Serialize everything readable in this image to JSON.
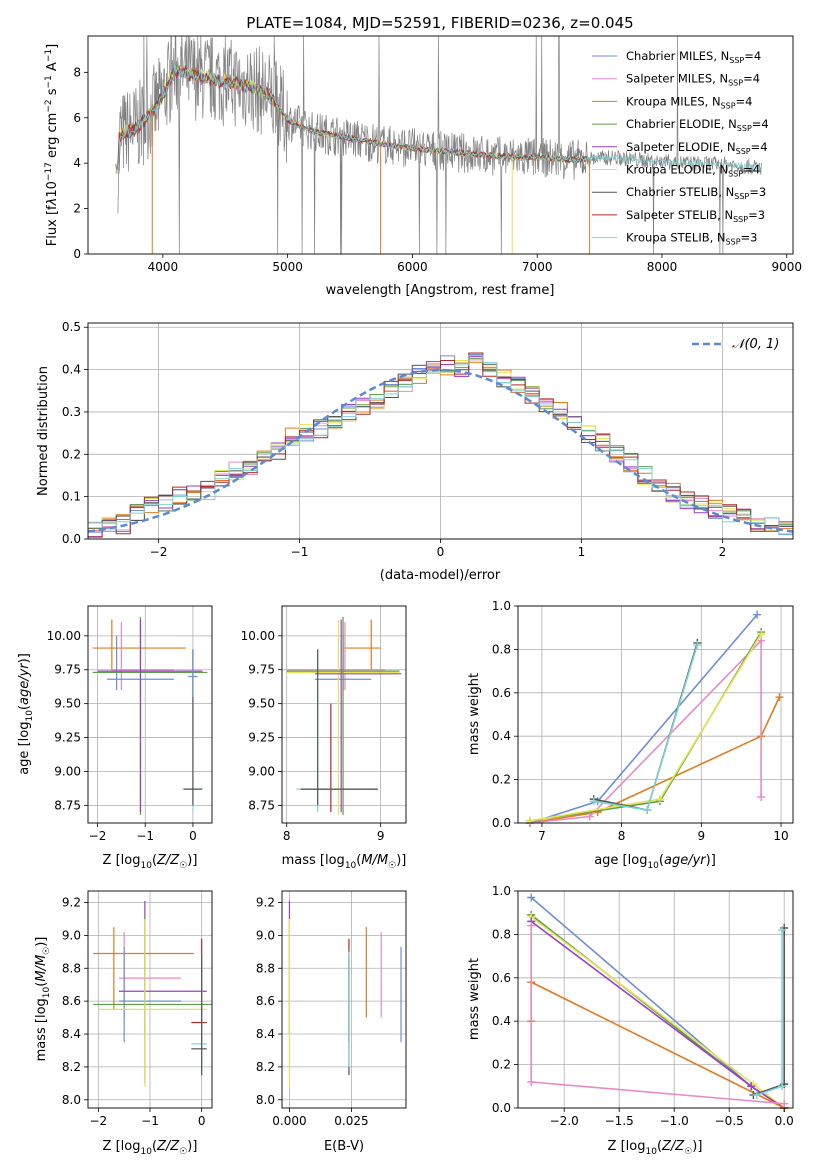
{
  "title": "PLATE=1084, MJD=52591, FIBERID=0236, z=0.045",
  "colors": {
    "Chabrier MILES": "#6e8fd6",
    "Salpeter MILES": "#e88ac6",
    "Kroupa MILES": "#e07b21",
    "Chabrier ELODIE": "#5f9c4f",
    "Salpeter ELODIE": "#9b3fc4",
    "Kroupa ELODIE": "#e3e650",
    "Chabrier STELIB": "#555555",
    "Salpeter STELIB": "#b02a2a",
    "Kroupa STELIB": "#7fd4d4",
    "observed": "#808080",
    "normal": "#5b8bd4",
    "grid": "#b0b0b0"
  },
  "chart_data": [
    {
      "type": "line",
      "panel": "spectrum",
      "xlabel": "wavelength [Angstrom, rest frame]",
      "ylabel": "Flux [f_λ 10^-17 erg cm^-2 s^-1 A^-1]",
      "xlim": [
        3400,
        9050
      ],
      "ylim": [
        0,
        9.6
      ],
      "xticks": [
        "4000",
        "5000",
        "6000",
        "7000",
        "8000",
        "9000"
      ],
      "yticks": [
        "0",
        "2",
        "4",
        "6",
        "8"
      ],
      "legend_position": "right",
      "legend": [
        "Chabrier MILES, N_SSP=4",
        "Salpeter MILES, N_SSP=4",
        "Kroupa MILES, N_SSP=4",
        "Chabrier ELODIE, N_SSP=4",
        "Salpeter ELODIE, N_SSP=4",
        "Kroupa ELODIE, N_SSP=4",
        "Chabrier STELIB, N_SSP=3",
        "Salpeter STELIB, N_SSP=3",
        "Kroupa STELIB, N_SSP=3"
      ],
      "model_continuum": [
        [
          3650,
          5.2
        ],
        [
          3800,
          5.6
        ],
        [
          3950,
          6.5
        ],
        [
          4100,
          8.1
        ],
        [
          4300,
          7.8
        ],
        [
          4500,
          7.6
        ],
        [
          4700,
          7.4
        ],
        [
          4850,
          7.0
        ],
        [
          5000,
          5.9
        ],
        [
          5200,
          5.4
        ],
        [
          5500,
          5.1
        ],
        [
          5800,
          4.8
        ],
        [
          6100,
          4.6
        ],
        [
          6400,
          4.45
        ],
        [
          6700,
          4.3
        ],
        [
          7000,
          4.25
        ],
        [
          7300,
          4.15
        ],
        [
          7600,
          4.25
        ],
        [
          7900,
          4.1
        ],
        [
          8200,
          4.0
        ],
        [
          8500,
          3.95
        ],
        [
          8800,
          3.8
        ]
      ]
    },
    {
      "type": "line",
      "panel": "residual-histogram",
      "xlabel": "(data-model)/error",
      "ylabel": "Normed distribution",
      "xlim": [
        -2.5,
        2.5
      ],
      "ylim": [
        0,
        0.51
      ],
      "xticks": [
        "−2",
        "−1",
        "0",
        "1",
        "2"
      ],
      "yticks": [
        "0.0",
        "0.1",
        "0.2",
        "0.3",
        "0.4",
        "0.5"
      ],
      "legend": [
        "𝒩(0, 1)"
      ],
      "legend_position": "top-right",
      "bin_width": 0.1,
      "histogram_mean": [
        0.025,
        0.03,
        0.035,
        0.06,
        0.08,
        0.085,
        0.1,
        0.11,
        0.115,
        0.14,
        0.16,
        0.17,
        0.19,
        0.21,
        0.24,
        0.25,
        0.26,
        0.28,
        0.3,
        0.31,
        0.33,
        0.35,
        0.37,
        0.39,
        0.4,
        0.41,
        0.4,
        0.42,
        0.4,
        0.38,
        0.36,
        0.34,
        0.31,
        0.3,
        0.27,
        0.25,
        0.23,
        0.2,
        0.18,
        0.15,
        0.13,
        0.11,
        0.09,
        0.08,
        0.07,
        0.06,
        0.05,
        0.04,
        0.03,
        0.025
      ]
    },
    {
      "type": "scatter",
      "panel": "Z-vs-age",
      "xlabel": "Z [log10(Z/Z☉)]",
      "ylabel": "age  [log10(age/yr)]",
      "xlim": [
        -2.2,
        0.4
      ],
      "ylim": [
        8.62,
        10.22
      ],
      "xticks": [
        "−2",
        "−1",
        "0"
      ],
      "yticks": [
        "8.75",
        "9.00",
        "9.25",
        "9.50",
        "9.75",
        "10.00"
      ]
    },
    {
      "type": "scatter",
      "panel": "mass-vs-age",
      "xlabel": "mass [log10(M/M☉)]",
      "ylabel": "",
      "xlim": [
        7.95,
        9.27
      ],
      "ylim": [
        8.62,
        10.22
      ],
      "xticks": [
        "8",
        "9"
      ],
      "yticks": [
        "8.75",
        "9.00",
        "9.25",
        "9.50",
        "9.75",
        "10.00"
      ]
    },
    {
      "type": "line",
      "panel": "age-vs-weight",
      "xlabel": "age  [log10(age/yr)]",
      "ylabel": "mass weight",
      "xlim": [
        6.7,
        10.15
      ],
      "ylim": [
        0,
        1.0
      ],
      "xticks": [
        "7",
        "8",
        "9",
        "10"
      ],
      "yticks": [
        "0.0",
        "0.2",
        "0.4",
        "0.6",
        "0.8",
        "1.0"
      ],
      "series": [
        {
          "key": "Chabrier MILES",
          "points": [
            [
              6.85,
              0.0
            ],
            [
              7.7,
              0.1
            ],
            [
              9.7,
              0.96
            ]
          ]
        },
        {
          "key": "Kroupa MILES",
          "points": [
            [
              6.85,
              0.0
            ],
            [
              7.7,
              0.05
            ],
            [
              9.75,
              0.4
            ],
            [
              9.98,
              0.58
            ]
          ]
        },
        {
          "key": "Salpeter MILES",
          "points": [
            [
              6.85,
              0.0
            ],
            [
              7.6,
              0.03
            ],
            [
              9.75,
              0.84
            ],
            [
              9.75,
              0.12
            ]
          ]
        },
        {
          "key": "Chabrier ELODIE",
          "points": [
            [
              6.85,
              0.01
            ],
            [
              8.48,
              0.1
            ],
            [
              9.75,
              0.88
            ]
          ]
        },
        {
          "key": "Kroupa ELODIE",
          "points": [
            [
              6.85,
              0.01
            ],
            [
              8.48,
              0.11
            ],
            [
              9.75,
              0.87
            ]
          ]
        },
        {
          "key": "Chabrier STELIB",
          "points": [
            [
              7.65,
              0.11
            ],
            [
              8.32,
              0.06
            ],
            [
              8.95,
              0.83
            ]
          ]
        },
        {
          "key": "Kroupa STELIB",
          "points": [
            [
              7.65,
              0.1
            ],
            [
              8.32,
              0.06
            ],
            [
              8.95,
              0.82
            ]
          ]
        }
      ]
    },
    {
      "type": "scatter",
      "panel": "Z-vs-mass",
      "xlabel": "Z [log10(Z/Z☉)]",
      "ylabel": "mass [log10(M/M☉)]",
      "xlim": [
        -2.2,
        0.2
      ],
      "ylim": [
        7.95,
        9.27
      ],
      "xticks": [
        "−2",
        "−1",
        "0"
      ],
      "yticks": [
        "8.0",
        "8.2",
        "8.4",
        "8.6",
        "8.8",
        "9.0",
        "9.2"
      ]
    },
    {
      "type": "scatter",
      "panel": "EBV-vs-mass",
      "xlabel": "E(B-V)",
      "ylabel": "",
      "xlim": [
        -0.003,
        0.047
      ],
      "ylim": [
        7.95,
        9.27
      ],
      "xticks": [
        "0.000",
        "0.025"
      ],
      "yticks": [
        "8.0",
        "8.2",
        "8.4",
        "8.6",
        "8.8",
        "9.0",
        "9.2"
      ]
    },
    {
      "type": "line",
      "panel": "Z-vs-weight",
      "xlabel": "Z [log10(Z/Z☉)]",
      "ylabel": "mass weight",
      "xlim": [
        -2.42,
        0.08
      ],
      "ylim": [
        0,
        1.0
      ],
      "xticks": [
        "−2.0",
        "−1.5",
        "−1.0",
        "−0.5",
        "0.0"
      ],
      "yticks": [
        "0.0",
        "0.2",
        "0.4",
        "0.6",
        "0.8",
        "1.0"
      ],
      "series": [
        {
          "key": "Chabrier MILES",
          "points": [
            [
              -2.3,
              0.97
            ],
            [
              -0.3,
              0.1
            ],
            [
              0.0,
              0.0
            ]
          ]
        },
        {
          "key": "Chabrier ELODIE",
          "points": [
            [
              -2.3,
              0.89
            ],
            [
              -0.3,
              0.1
            ],
            [
              0.0,
              0.0
            ]
          ]
        },
        {
          "key": "Kroupa ELODIE",
          "points": [
            [
              -2.3,
              0.88
            ],
            [
              -0.28,
              0.11
            ],
            [
              0.0,
              0.0
            ]
          ]
        },
        {
          "key": "Salpeter ELODIE",
          "points": [
            [
              -2.3,
              0.86
            ],
            [
              -0.3,
              0.1
            ],
            [
              0.0,
              0.0
            ]
          ]
        },
        {
          "key": "Kroupa MILES",
          "points": [
            [
              -2.3,
              0.4
            ],
            [
              -2.3,
              0.58
            ],
            [
              0.0,
              0.0
            ]
          ]
        },
        {
          "key": "Salpeter MILES",
          "points": [
            [
              -2.3,
              0.84
            ],
            [
              -2.3,
              0.12
            ],
            [
              0.0,
              0.02
            ]
          ]
        },
        {
          "key": "Chabrier STELIB",
          "points": [
            [
              -0.28,
              0.06
            ],
            [
              0.0,
              0.11
            ],
            [
              0.0,
              0.83
            ]
          ]
        },
        {
          "key": "Kroupa STELIB",
          "points": [
            [
              -0.25,
              0.06
            ],
            [
              -0.02,
              0.1
            ],
            [
              -0.02,
              0.82
            ]
          ]
        }
      ]
    }
  ]
}
